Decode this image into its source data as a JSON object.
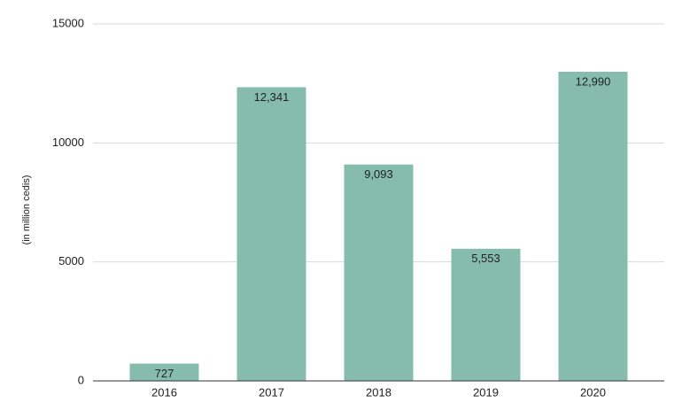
{
  "chart_data": {
    "type": "bar",
    "y_label": "(in million cedis)",
    "categories": [
      "2016",
      "2017",
      "2018",
      "2019",
      "2020"
    ],
    "values": [
      727,
      12341,
      9093,
      5553,
      12990
    ],
    "value_labels": [
      "727",
      "12,341",
      "9,093",
      "5,553",
      "12,990"
    ],
    "color": "#86bcab",
    "ylim": [
      0,
      15000
    ],
    "yticks": [
      0,
      5000,
      10000,
      15000
    ],
    "grid": true
  }
}
